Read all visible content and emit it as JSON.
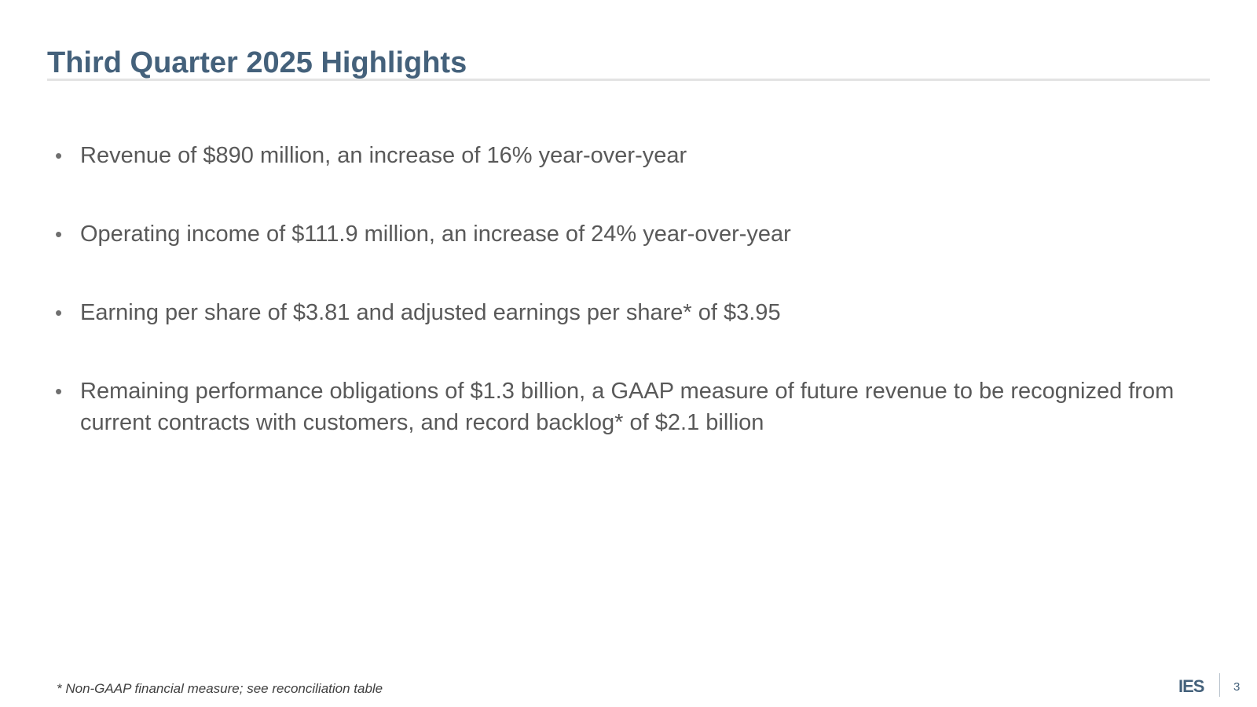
{
  "slide": {
    "title": "Third Quarter 2025 Highlights",
    "bullets": [
      "Revenue of $890 million, an increase of 16% year-over-year",
      "Operating income of $111.9 million, an increase of 24% year-over-year",
      "Earning per share of $3.81 and adjusted earnings per share* of $3.95",
      "Remaining performance obligations of $1.3 billion, a GAAP measure of future revenue to be recognized from current contracts with customers, and record backlog* of $2.1 billion"
    ],
    "bullet_glyph": "•",
    "footnote": "* Non-GAAP financial measure; see reconciliation table",
    "page_number": "3",
    "logo": {
      "text": "IES",
      "color": "#44617b"
    }
  },
  "colors": {
    "title": "#44617b",
    "body_text": "#595959",
    "rule": "#e3e3e3"
  }
}
